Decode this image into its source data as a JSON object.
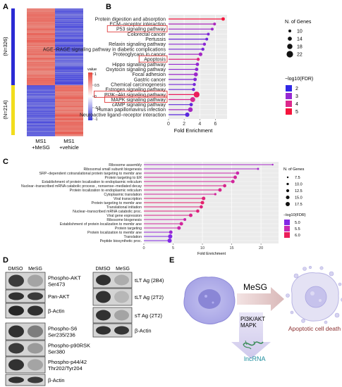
{
  "panels": {
    "A": {
      "letter": "A",
      "group_top": "(N=326)",
      "group_bottom": "(N=214)",
      "col1": [
        "MS1",
        "+MeSG"
      ],
      "col2": [
        "MS1",
        "+vehicle"
      ],
      "colorbar_title": "value",
      "colorbar_ticks": [
        "1",
        "0.5",
        "0",
        "-0.5",
        "-1"
      ],
      "color_high": "#e8473c",
      "color_low": "#3b3bd8",
      "color_top_bar": "#2a2ad4",
      "color_bottom_bar": "#f2dd1c"
    },
    "B": {
      "letter": "B",
      "xlabel": "Fold Enrichment",
      "xticks": [
        "0",
        "2",
        "4",
        "6"
      ],
      "size_legend_title": "N. of Genes",
      "size_legend": [
        "10",
        "14",
        "18",
        "22"
      ],
      "color_legend_title": "−log10(FDR)",
      "color_legend": [
        "2",
        "3",
        "4",
        "5"
      ]
    },
    "C": {
      "letter": "C",
      "xlabel": "Fold Enrichment",
      "xticks": [
        "0",
        "5",
        "10",
        "15",
        "20"
      ],
      "size_legend_title": "N. of Genes",
      "size_legend": [
        "7.5",
        "10.0",
        "12.5",
        "15.0",
        "17.5"
      ],
      "color_legend_title": "−log10(FDR)",
      "color_legend": [
        "5.0",
        "5.5",
        "6.0"
      ]
    },
    "D": {
      "letter": "D",
      "left_header": [
        "DMSO",
        "MeSG"
      ],
      "right_header": [
        "DMSO",
        "MeSG"
      ],
      "left_blots": [
        "Phospho-AKT\nSer473",
        "Pan-AKT",
        "β-Actin",
        "Phospho-S6\nSer235/236",
        "Phospho-p90RSK\nSer380",
        "Phospho-p44/42\nThr202/Tyr204",
        "β-Actin"
      ],
      "right_blots": [
        "tLT Ag (2B4)",
        "tLT Ag (2T2)",
        "sT Ag (2T2)",
        "β-Actin"
      ]
    },
    "E": {
      "letter": "E",
      "drug": "MeSG",
      "pathway": [
        "PI3K/AKT",
        "MAPK"
      ],
      "rna": "lncRNA",
      "outcome": "Apoptotic cell death"
    }
  },
  "chart_data": [
    {
      "type": "bar",
      "panel": "B",
      "categories": [
        "Protein digestion and absorption",
        "ECM−receptor interaction",
        "P53 signaling pathway",
        "Colorectal cancer",
        "Pertussis",
        "Relaxin signaling pathway",
        "AGE−RAGE signaling pathway in diabetic complications",
        "Proteoglycans in cancer",
        "Apoptosis",
        "Hippo signaling pathway",
        "Oxytocin signaling pathway",
        "Focal adhesion",
        "Gastric cancer",
        "Chemical carcinogenesis",
        "Estrogen signaling pathway",
        "PI3K−Akt signaling pathway",
        "MAPK signaling pathway",
        "cAMP signaling pathway",
        "Human papillomavirus infection",
        "Neuroactive ligand−receptor interaction"
      ],
      "values": [
        7.0,
        5.9,
        5.6,
        5.1,
        4.9,
        4.6,
        4.4,
        4.1,
        3.8,
        3.7,
        3.6,
        3.5,
        3.4,
        3.3,
        3.2,
        3.6,
        3.1,
        2.9,
        2.8,
        2.4
      ],
      "fdr": [
        5.2,
        3.3,
        3.1,
        2.8,
        2.6,
        2.9,
        2.7,
        3.2,
        4.1,
        3.0,
        2.9,
        3.1,
        2.8,
        2.7,
        2.6,
        4.6,
        3.9,
        2.5,
        3.2,
        2.4
      ],
      "genes": [
        12,
        10,
        10,
        10,
        10,
        11,
        11,
        13,
        11,
        12,
        12,
        14,
        12,
        11,
        11,
        20,
        17,
        12,
        16,
        15
      ],
      "highlighted": [
        "P53 signaling pathway",
        "Apoptosis",
        "PI3K−Akt signaling pathway",
        "MAPK signaling pathway"
      ],
      "xlabel": "Fold Enrichment",
      "xlim": [
        0,
        7.5
      ]
    },
    {
      "type": "bar",
      "panel": "C",
      "categories": [
        "Ribosome assembly",
        "Ribosomal small subunit biogenesis",
        "SRP−dependent cotranslational protein targeting to membr ane",
        "Protein targeting to ER",
        "Establishment of protein localization to endoplasmic reticulum",
        "Nuclear−transcribed mRNA catabolic process , nonsense−mediated decay",
        "Protein localization to endoplasmic reticulum",
        "Cytoplasmic translation",
        "Viral transcription",
        "Protein targeting to membr ane",
        "Translational initiation",
        "Nuclear−transcribed mRNA catabolic proc.",
        "Viral gene expression",
        "Ribosome biogenesis",
        "Establishment of protein localization to membr ane",
        "Protein targeting",
        "Protein localization to membr ane",
        "Translation",
        "Peptide biosynthetic proc."
      ],
      "values": [
        22.0,
        19.5,
        16.0,
        15.6,
        15.2,
        13.8,
        13.0,
        12.2,
        10.2,
        10.0,
        9.8,
        9.2,
        8.0,
        7.0,
        6.4,
        6.0,
        4.6,
        4.5,
        4.4
      ],
      "fdr": [
        5.3,
        5.3,
        5.6,
        5.7,
        5.7,
        5.8,
        5.8,
        5.7,
        5.9,
        6.0,
        5.9,
        5.9,
        5.8,
        5.6,
        5.7,
        5.6,
        5.2,
        5.0,
        5.0
      ],
      "genes": [
        7.5,
        9,
        14,
        14.5,
        14.5,
        14,
        14.5,
        10,
        15,
        15,
        14,
        14,
        15,
        12,
        15,
        15,
        15,
        17.5,
        17.5
      ],
      "xlabel": "Fold Enrichment",
      "xlim": [
        0,
        23
      ]
    }
  ]
}
